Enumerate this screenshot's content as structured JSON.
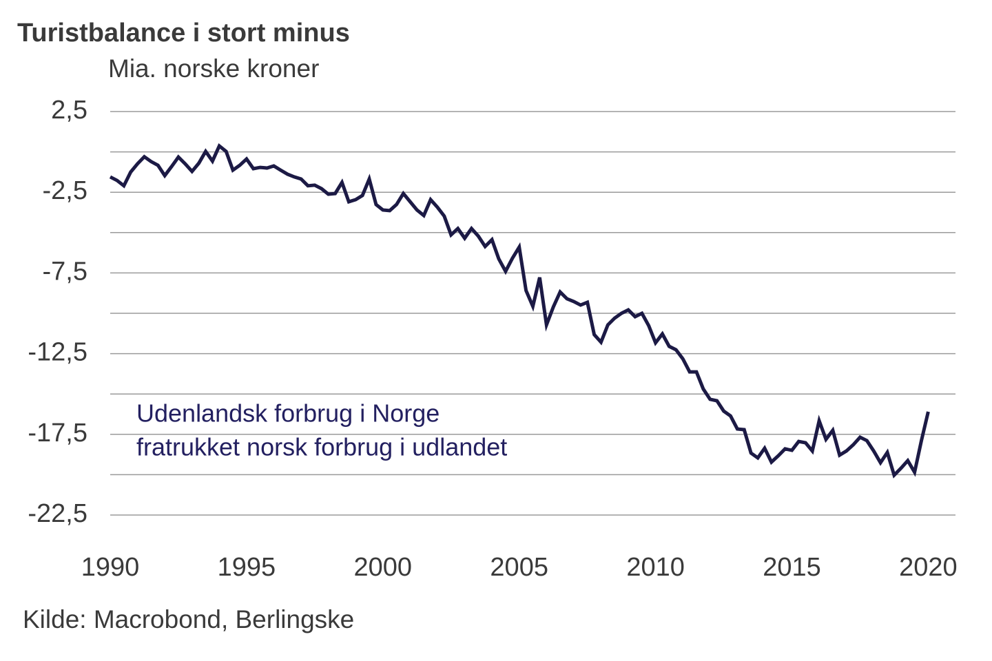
{
  "chart_data": {
    "type": "line",
    "title": "Turistbalance i stort minus",
    "subtitle": "Mia. norske kroner",
    "annotation": [
      "Udenlandsk forbrug i Norge",
      "fratrukket norsk forbrug i udlandet"
    ],
    "source": "Kilde: Macrobond, Berlingske",
    "x": [
      1990,
      1990.25,
      1990.5,
      1990.75,
      1991,
      1991.25,
      1991.5,
      1991.75,
      1992,
      1992.25,
      1992.5,
      1992.75,
      1993,
      1993.25,
      1993.5,
      1993.75,
      1994,
      1994.25,
      1994.5,
      1994.75,
      1995,
      1995.25,
      1995.5,
      1995.75,
      1996,
      1996.25,
      1996.5,
      1996.75,
      1997,
      1997.25,
      1997.5,
      1997.75,
      1998,
      1998.25,
      1998.5,
      1998.75,
      1999,
      1999.25,
      1999.5,
      1999.75,
      2000,
      2000.25,
      2000.5,
      2000.75,
      2001,
      2001.25,
      2001.5,
      2001.75,
      2002,
      2002.25,
      2002.5,
      2002.75,
      2003,
      2003.25,
      2003.5,
      2003.75,
      2004,
      2004.25,
      2004.5,
      2004.75,
      2005,
      2005.25,
      2005.5,
      2005.75,
      2006,
      2006.25,
      2006.5,
      2006.75,
      2007,
      2007.25,
      2007.5,
      2007.75,
      2008,
      2008.25,
      2008.5,
      2008.75,
      2009,
      2009.25,
      2009.5,
      2009.75,
      2010,
      2010.25,
      2010.5,
      2010.75,
      2011,
      2011.25,
      2011.5,
      2011.75,
      2012,
      2012.25,
      2012.5,
      2012.75,
      2013,
      2013.25,
      2013.5,
      2013.75,
      2014,
      2014.25,
      2014.5,
      2014.75,
      2015,
      2015.25,
      2015.5,
      2015.75,
      2016,
      2016.25,
      2016.5,
      2016.75,
      2017,
      2017.25,
      2017.5,
      2017.75,
      2018,
      2018.25,
      2018.5,
      2018.75,
      2019,
      2019.25,
      2019.5,
      2019.75,
      2020
    ],
    "series": [
      {
        "name": "Udenlandsk forbrug i Norge fratrukket norsk forbrug i udlandet",
        "color": "#1c1a45",
        "values": [
          -1.55,
          -1.77,
          -2.1,
          -1.25,
          -0.74,
          -0.3,
          -0.6,
          -0.83,
          -1.47,
          -0.91,
          -0.32,
          -0.74,
          -1.21,
          -0.7,
          0.03,
          -0.57,
          0.37,
          0.03,
          -1.13,
          -0.83,
          -0.44,
          -1.04,
          -0.96,
          -1.0,
          -0.87,
          -1.13,
          -1.38,
          -1.55,
          -1.68,
          -2.1,
          -2.06,
          -2.28,
          -2.62,
          -2.58,
          -1.89,
          -3.09,
          -2.96,
          -2.7,
          -1.68,
          -3.26,
          -3.6,
          -3.64,
          -3.26,
          -2.58,
          -3.09,
          -3.6,
          -3.94,
          -2.96,
          -3.43,
          -3.98,
          -5.14,
          -4.75,
          -5.35,
          -4.75,
          -5.22,
          -5.86,
          -5.44,
          -6.63,
          -7.4,
          -6.59,
          -5.9,
          -8.59,
          -9.57,
          -7.78,
          -10.72,
          -9.61,
          -8.68,
          -9.1,
          -9.27,
          -9.49,
          -9.32,
          -11.32,
          -11.79,
          -10.72,
          -10.3,
          -10.0,
          -9.79,
          -10.21,
          -10.0,
          -10.77,
          -11.83,
          -11.28,
          -12.05,
          -12.26,
          -12.82,
          -13.63,
          -13.63,
          -14.69,
          -15.33,
          -15.42,
          -16.06,
          -16.36,
          -17.17,
          -17.21,
          -18.66,
          -18.96,
          -18.36,
          -19.22,
          -18.83,
          -18.4,
          -18.49,
          -17.94,
          -18.02,
          -18.53,
          -16.66,
          -17.81,
          -17.25,
          -18.79,
          -18.53,
          -18.15,
          -17.68,
          -17.89,
          -18.53,
          -19.26,
          -18.62,
          -20.03,
          -19.6,
          -19.13,
          -19.85,
          -17.89,
          -16.1
        ]
      }
    ],
    "xlim": [
      1990,
      2021
    ],
    "xticks": [
      1990,
      1995,
      2000,
      2005,
      2010,
      2015,
      2020
    ],
    "ylim": [
      -22.5,
      2.5
    ],
    "yticks": [
      {
        "value": 2.5,
        "label": "2,5"
      },
      {
        "value": -2.5,
        "label": "-2,5"
      },
      {
        "value": -7.5,
        "label": "-7,5"
      },
      {
        "value": -12.5,
        "label": "-12,5"
      },
      {
        "value": -17.5,
        "label": "-17,5"
      },
      {
        "value": -22.5,
        "label": "-22,5"
      }
    ],
    "minor_yticks": [
      0,
      -5,
      -10,
      -15,
      -20
    ],
    "grid": true
  }
}
